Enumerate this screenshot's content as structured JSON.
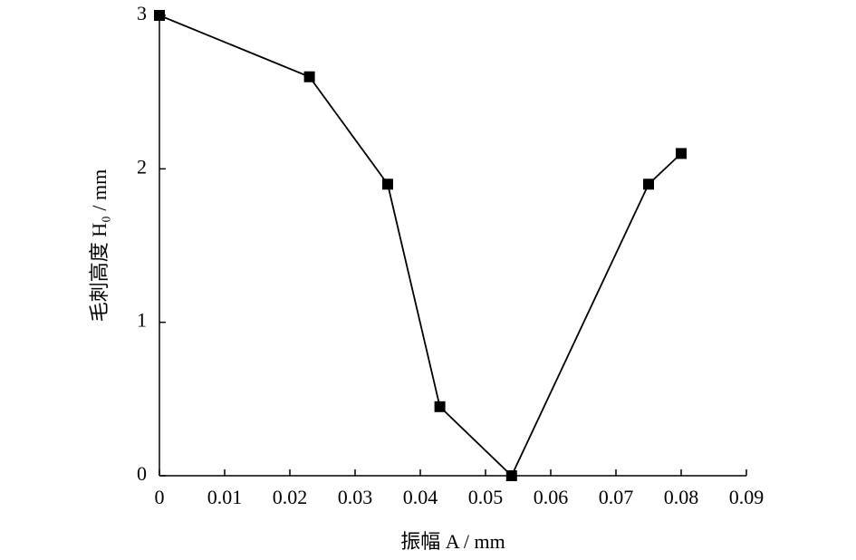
{
  "chart_data": {
    "type": "line",
    "xlabel": "振幅 A / mm",
    "ylabel": "毛刺高度 H₀ / mm",
    "x": [
      0,
      0.023,
      0.035,
      0.043,
      0.054,
      0.075,
      0.08
    ],
    "series": [
      {
        "color": "#000000",
        "values": [
          3,
          2.6,
          1.9,
          0.45,
          0,
          1.9,
          2.1
        ]
      }
    ],
    "xlim": [
      0,
      0.09
    ],
    "xticks": [
      0,
      0.01,
      0.02,
      0.03,
      0.04,
      0.05,
      0.06,
      0.07,
      0.08,
      0.09
    ],
    "ylim": [
      0,
      3
    ],
    "yticks": [
      0,
      1,
      2,
      3
    ],
    "marker": "square"
  }
}
